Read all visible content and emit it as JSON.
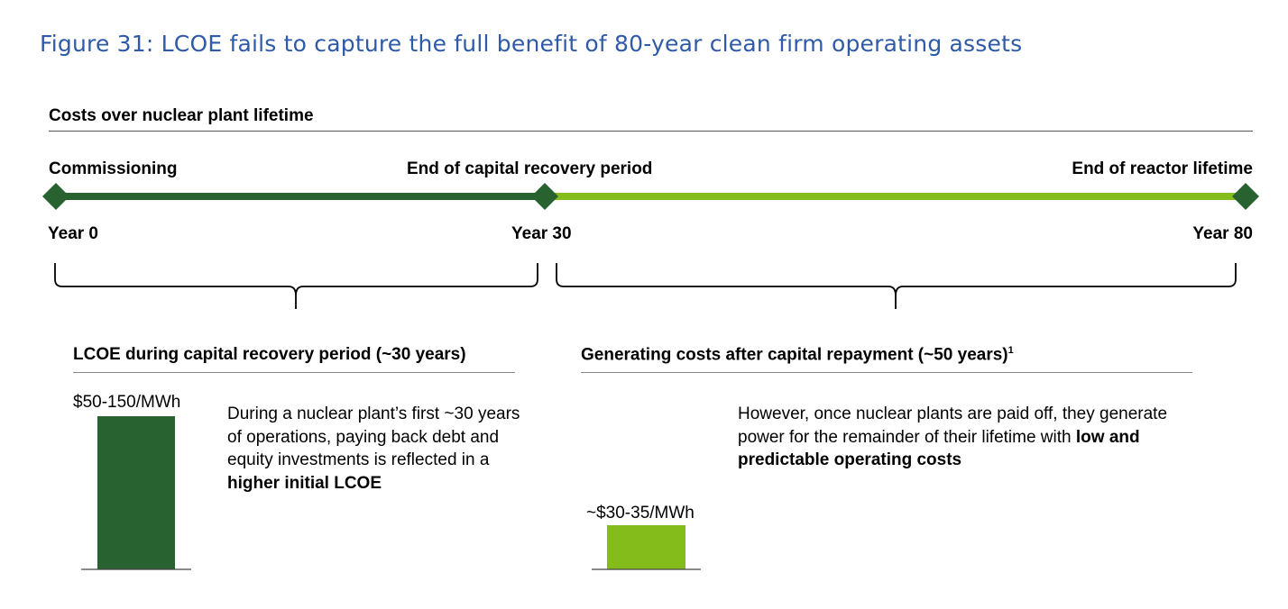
{
  "figure_title": "Figure 31: LCOE fails to capture the full benefit of 80-year clean firm operating assets",
  "section_heading": "Costs over nuclear plant lifetime",
  "timeline": {
    "milestones": [
      {
        "label": "Commissioning",
        "year_label": "Year 0",
        "year": 0
      },
      {
        "label": "End of capital recovery period",
        "year_label": "Year 30",
        "year": 30
      },
      {
        "label": "End of reactor lifetime",
        "year_label": "Year 80",
        "year": 80
      }
    ],
    "colors": {
      "recovery": "#276230",
      "after": "#84bd1b",
      "marker": "#276230"
    }
  },
  "panels": {
    "recovery": {
      "heading": "LCOE during capital recovery period (~30 years)",
      "value_label": "$50-150/MWh",
      "description_pre": "During a nuclear plant’s first ~30 years of operations, paying back debt and equity investments is reflected in a ",
      "description_bold": "higher initial LCOE",
      "description_post": "",
      "bar_color": "#276230"
    },
    "after": {
      "heading": "Generating costs after capital repayment (~50 years)",
      "heading_note": "1",
      "value_label": "~$30-35/MWh",
      "description_pre": "However, once nuclear plants are paid off, they generate power for the remainder of their lifetime with ",
      "description_bold": "low and predictable operating costs",
      "description_post": "",
      "bar_color": "#84bd1b"
    }
  }
}
